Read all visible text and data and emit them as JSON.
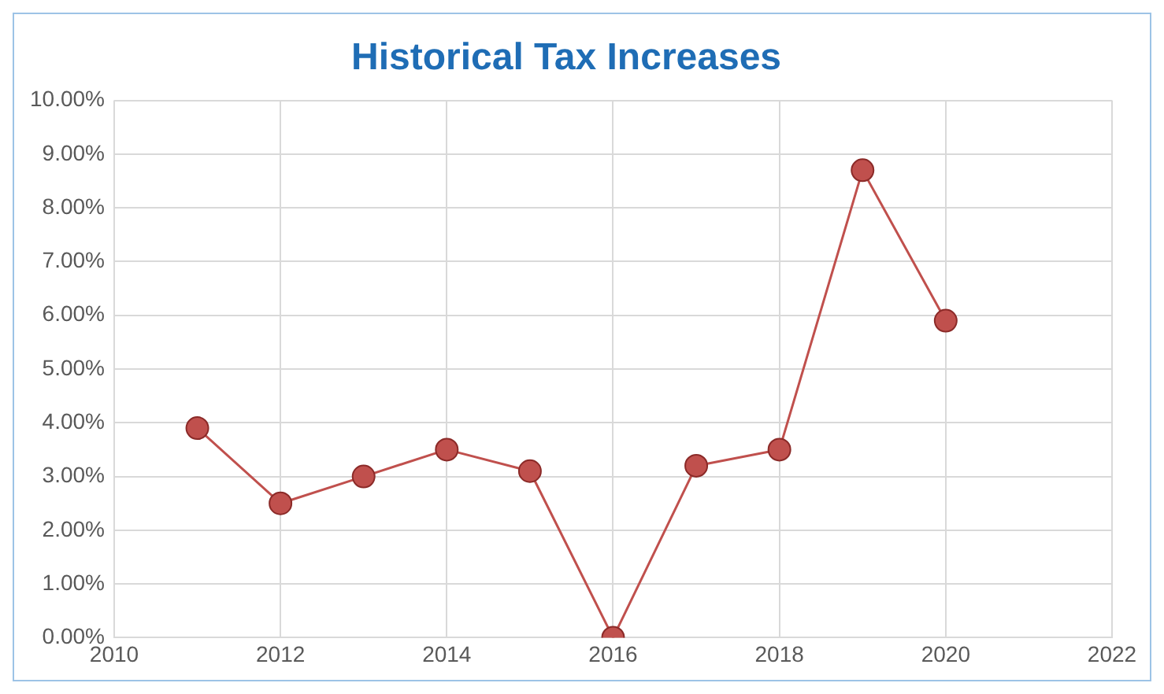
{
  "chart_data": {
    "type": "line",
    "title": "Historical Tax Increases",
    "x": [
      2011,
      2012,
      2013,
      2014,
      2015,
      2016,
      2017,
      2018,
      2019,
      2020
    ],
    "series": [
      {
        "color": "#c0504d",
        "values": [
          3.9,
          2.5,
          3.0,
          3.5,
          3.1,
          0.0,
          3.2,
          3.5,
          8.7,
          5.9
        ]
      }
    ],
    "xlim": [
      2010,
      2022
    ],
    "xticks": [
      2010,
      2012,
      2014,
      2016,
      2018,
      2020,
      2022
    ],
    "ylim": [
      0,
      10
    ],
    "yticks": [
      {
        "value": 0,
        "label": "0.00%"
      },
      {
        "value": 1,
        "label": "1.00%"
      },
      {
        "value": 2,
        "label": "2.00%"
      },
      {
        "value": 3,
        "label": "3.00%"
      },
      {
        "value": 4,
        "label": "4.00%"
      },
      {
        "value": 5,
        "label": "5.00%"
      },
      {
        "value": 6,
        "label": "6.00%"
      },
      {
        "value": 7,
        "label": "7.00%"
      },
      {
        "value": 8,
        "label": "8.00%"
      },
      {
        "value": 9,
        "label": "9.00%"
      },
      {
        "value": 10,
        "label": "10.00%"
      }
    ],
    "grid": true,
    "marker": "circle",
    "line_style": "solid",
    "legend": false
  }
}
